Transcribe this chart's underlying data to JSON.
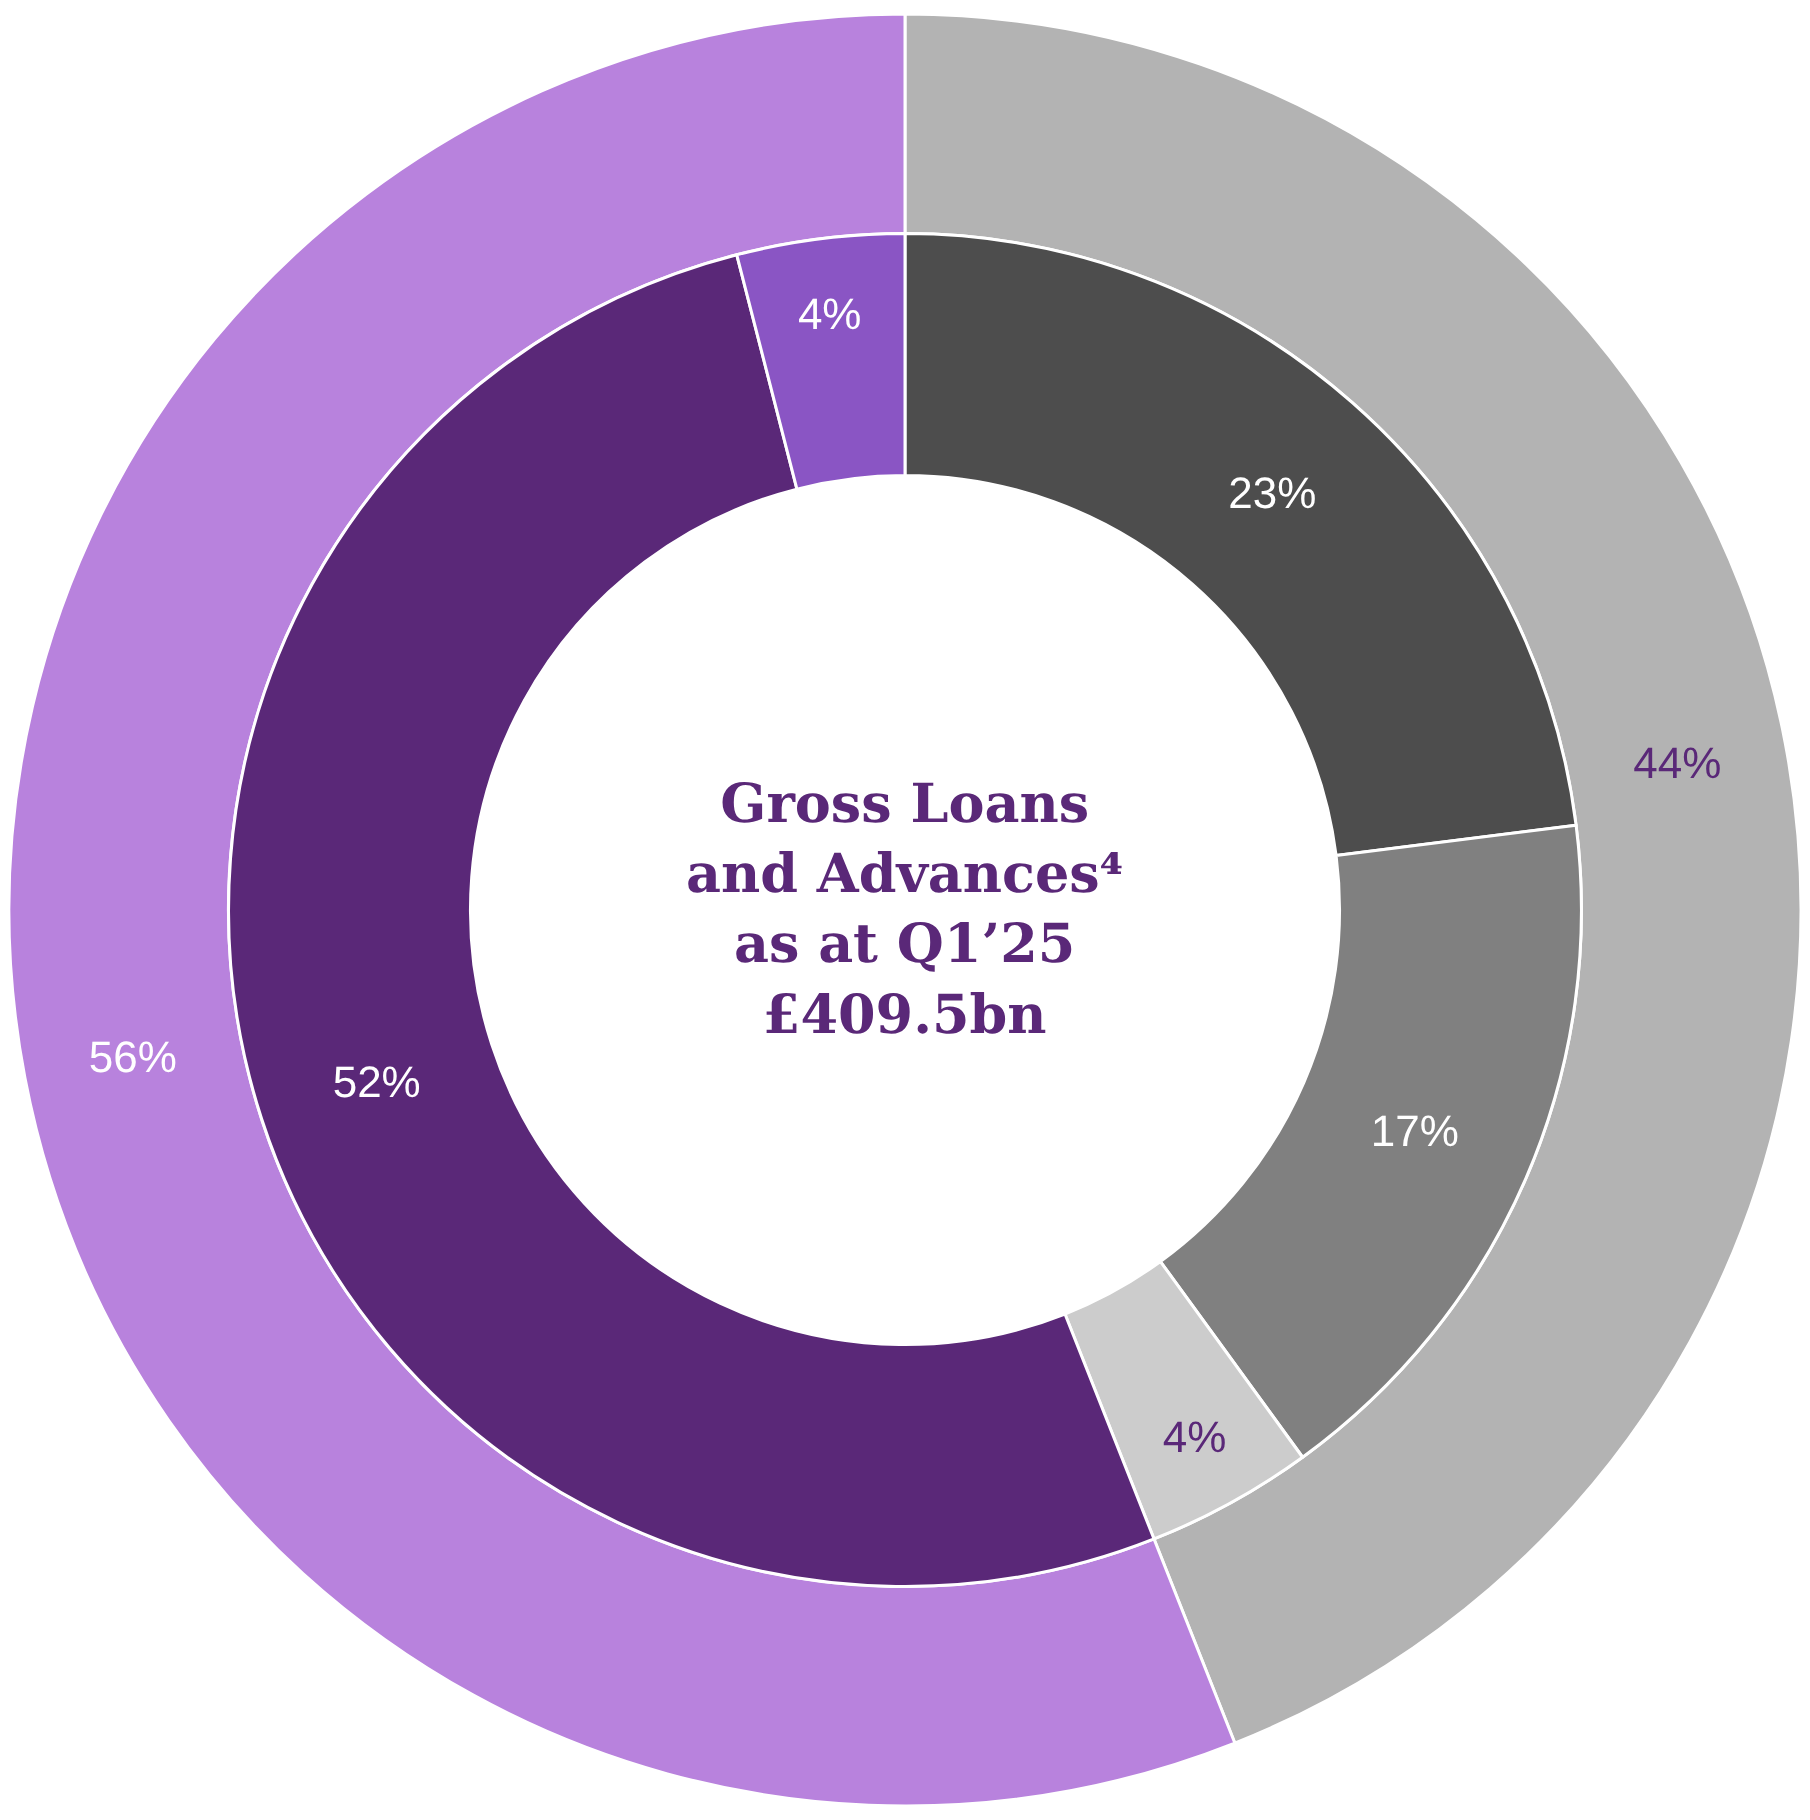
{
  "chart_data": {
    "type": "donut",
    "title": "Gross Loans and Advances⁴ as at Q1’25 £409.5bn",
    "series": [
      {
        "values": [
          44,
          56
        ],
        "colors": [
          "#b3b3b3",
          "#b882dd"
        ],
        "value_labels": [
          "44%",
          "56%"
        ]
      },
      {
        "values": [
          23,
          17,
          4,
          52,
          4
        ],
        "colors": [
          "#4d4d4d",
          "#808080",
          "#cccccc",
          "#5a2878",
          "#8a55c4"
        ],
        "value_labels": [
          "23%",
          "17%",
          "4%",
          "52%",
          "4%"
        ]
      }
    ],
    "legend": false
  }
}
